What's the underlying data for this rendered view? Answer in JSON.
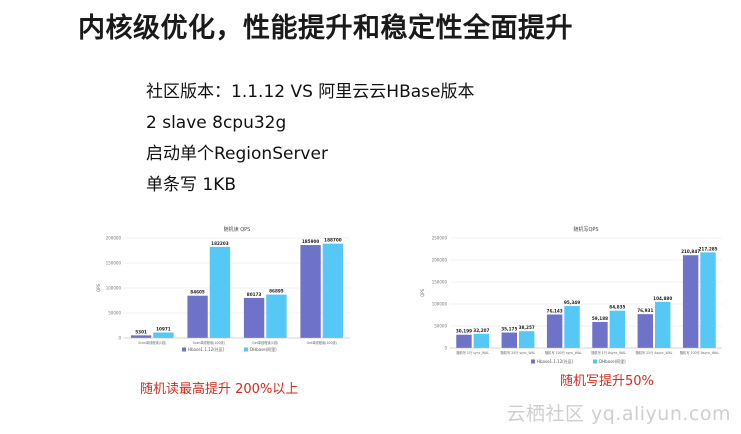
{
  "slide": {
    "title": "内核级优化，性能提升和稳定性全面提升",
    "bullets": [
      "社区版本：1.1.12  VS 阿里云云HBase版本",
      "2 slave 8cpu32g",
      "启动单个RegionServer",
      "单条写 1KB"
    ],
    "watermark": "云栖社区 yq.aliyun.com"
  },
  "colors": {
    "series_a": "#6f72c9",
    "series_b": "#55c8f5",
    "caption": "#d42a1e"
  },
  "charts": [
    {
      "caption": "随机读最高提升 200%以上",
      "chart_data": {
        "type": "bar",
        "title": "随机读 QPS",
        "ylabel": "QPS",
        "categories": [
          "Scan单线程读(1线)",
          "Scan单线程读(100线)",
          "Get单线程读(1线)",
          "Get单线程读(100线)"
        ],
        "series": [
          {
            "name": "Hbase1.1.12(社区)",
            "values": [
              5301,
              84605,
              80173,
              185900
            ],
            "labels": [
              "5301",
              "84605",
              "80173",
              "185900"
            ]
          },
          {
            "name": "DHbase(阿里)",
            "values": [
              10971,
              182203,
              86895,
              188700
            ],
            "labels": [
              "10971",
              "182203",
              "86895",
              "188700"
            ]
          }
        ],
        "yticks": [
          0,
          50000,
          100000,
          150000,
          200000
        ],
        "ytick_labels": [
          "0",
          "50000",
          "100000",
          "150000",
          "200000"
        ],
        "ylim": [
          0,
          200000
        ],
        "grid": true,
        "legend": "bottom"
      }
    },
    {
      "caption": "随机写提升50%",
      "chart_data": {
        "type": "bar",
        "title": "随机写QPS",
        "ylabel": "QPS",
        "categories": [
          "随机写 1行 sync_WAL",
          "随机写 25行 sync_WAL",
          "随机写 100行 sync_WAL",
          "随机写 1行 Async_WAL",
          "随机写 25行 Async_WAL",
          "随机写 100行 Async_WAL"
        ],
        "series": [
          {
            "name": "Hbase1.1.12(社区)",
            "values": [
              30199,
              35175,
              76143,
              59188,
              76931,
              210847
            ],
            "labels": [
              "30,199",
              "35,175",
              "76,143",
              "59,188",
              "76,931",
              "210,847"
            ]
          },
          {
            "name": "DHbase(阿里)",
            "values": [
              32207,
              38257,
              95349,
              84835,
              104880,
              217285
            ],
            "labels": [
              "32,207",
              "38,257",
              "95,349",
              "84,835",
              "104,880",
              "217,285"
            ]
          }
        ],
        "yticks": [
          0,
          50000,
          100000,
          150000,
          200000,
          250000
        ],
        "ytick_labels": [
          "0",
          "50000",
          "100000",
          "150000",
          "200000",
          "250000"
        ],
        "ylim": [
          0,
          250000
        ],
        "grid": true,
        "legend": "bottom"
      }
    }
  ]
}
